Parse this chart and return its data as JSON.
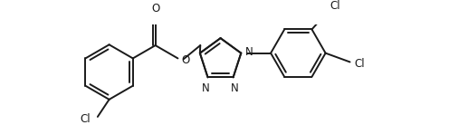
{
  "background_color": "#ffffff",
  "line_color": "#1a1a1a",
  "line_width": 1.4,
  "font_size": 8.5,
  "figsize": [
    4.96,
    1.38
  ],
  "dpi": 100,
  "xlim": [
    0,
    496
  ],
  "ylim": [
    0,
    138
  ]
}
